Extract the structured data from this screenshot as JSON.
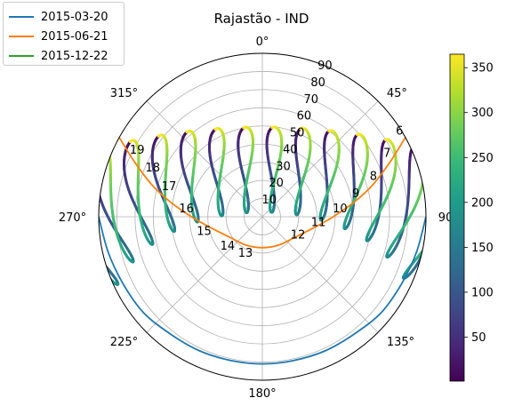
{
  "chart_data": {
    "type": "polar-sunpath",
    "title": "Rajastão - IND",
    "legend": {
      "placement": "outside-top-left",
      "entries": [
        {
          "label": "2015-03-20",
          "color": "#1f77b4"
        },
        {
          "label": "2015-06-21",
          "color": "#ff7f0e"
        },
        {
          "label": "2015-12-22",
          "color": "#2ca02c"
        }
      ]
    },
    "angular_axis": {
      "zero_location": "top",
      "direction": "clockwise",
      "ticks": [
        {
          "deg": 0,
          "label": "0°"
        },
        {
          "deg": 45,
          "label": "45°"
        },
        {
          "deg": 90,
          "label": "90°"
        },
        {
          "deg": 135,
          "label": "135°"
        },
        {
          "deg": 180,
          "label": "180°"
        },
        {
          "deg": 225,
          "label": "225°"
        },
        {
          "deg": 270,
          "label": "270°"
        },
        {
          "deg": 315,
          "label": "315°"
        }
      ]
    },
    "radial_axis": {
      "range": [
        0,
        90
      ],
      "ticks": [
        "10",
        "20",
        "30",
        "40",
        "50",
        "60",
        "70",
        "80",
        "90"
      ],
      "grid": true
    },
    "series": [
      {
        "name": "2015-03-20",
        "color": "#1f77b4",
        "points": [
          [
            90,
            90
          ],
          [
            103,
            87
          ],
          [
            116,
            85
          ],
          [
            129,
            84
          ],
          [
            142,
            82
          ],
          [
            155,
            81.5
          ],
          [
            168,
            81
          ],
          [
            180,
            81
          ],
          [
            192,
            81
          ],
          [
            205,
            81.5
          ],
          [
            218,
            82
          ],
          [
            231,
            84
          ],
          [
            244,
            85
          ],
          [
            257,
            87
          ],
          [
            270,
            90
          ]
        ]
      },
      {
        "name": "2015-06-21",
        "color": "#ff7f0e",
        "points": [
          [
            61,
            90
          ],
          [
            67,
            76
          ],
          [
            74,
            63
          ],
          [
            81,
            51
          ],
          [
            90,
            39
          ],
          [
            102,
            29
          ],
          [
            123,
            21
          ],
          [
            150,
            18
          ],
          [
            180,
            17
          ],
          [
            210,
            18
          ],
          [
            237,
            21
          ],
          [
            258,
            29
          ],
          [
            270,
            39
          ],
          [
            279,
            51
          ],
          [
            286,
            63
          ],
          [
            293,
            76
          ],
          [
            299,
            90
          ]
        ]
      },
      {
        "name": "2015-12-22",
        "color": "#2ca02c",
        "points": [
          [
            119,
            90
          ],
          [
            128,
            97
          ],
          [
            136,
            104
          ],
          [
            144,
            108
          ],
          [
            153,
            111
          ],
          [
            162,
            113
          ],
          [
            171,
            114
          ],
          [
            180,
            114
          ],
          [
            189,
            114
          ],
          [
            198,
            113
          ],
          [
            207,
            111
          ],
          [
            216,
            108
          ],
          [
            224,
            104
          ],
          [
            232,
            97
          ],
          [
            241,
            90
          ]
        ]
      }
    ],
    "analemmas": [
      {
        "label": "6",
        "hour": 6,
        "label_at": [
          58,
          89
        ]
      },
      {
        "label": "7",
        "hour": 7,
        "label_at": [
          63,
          77
        ]
      },
      {
        "label": "8",
        "hour": 8,
        "label_at": [
          70,
          65
        ]
      },
      {
        "label": "9",
        "hour": 9,
        "label_at": [
          76,
          53
        ]
      },
      {
        "label": "10",
        "hour": 10,
        "label_at": [
          84,
          43
        ]
      },
      {
        "label": "11",
        "hour": 11,
        "label_at": [
          96,
          31
        ]
      },
      {
        "label": "12",
        "hour": 12,
        "label_at": [
          117,
          22
        ]
      },
      {
        "label": "13",
        "hour": 13,
        "label_at": [
          205,
          22
        ]
      },
      {
        "label": "14",
        "hour": 14,
        "label_at": [
          230,
          25
        ]
      },
      {
        "label": "15",
        "hour": 15,
        "label_at": [
          256,
          33
        ]
      },
      {
        "label": "16",
        "hour": 16,
        "label_at": [
          276,
          42
        ]
      },
      {
        "label": "17",
        "hour": 17,
        "label_at": [
          288,
          54
        ]
      },
      {
        "label": "18",
        "hour": 18,
        "label_at": [
          294,
          66
        ]
      },
      {
        "label": "19",
        "hour": 19,
        "label_at": [
          298,
          78
        ]
      }
    ],
    "analemma_color_value": "day of year",
    "colorbar": {
      "colormap": "viridis",
      "range": [
        1,
        365
      ],
      "ticks": [
        "50",
        "100",
        "150",
        "200",
        "250",
        "300",
        "350"
      ],
      "tick_values": [
        50,
        100,
        150,
        200,
        250,
        300,
        350
      ]
    }
  }
}
